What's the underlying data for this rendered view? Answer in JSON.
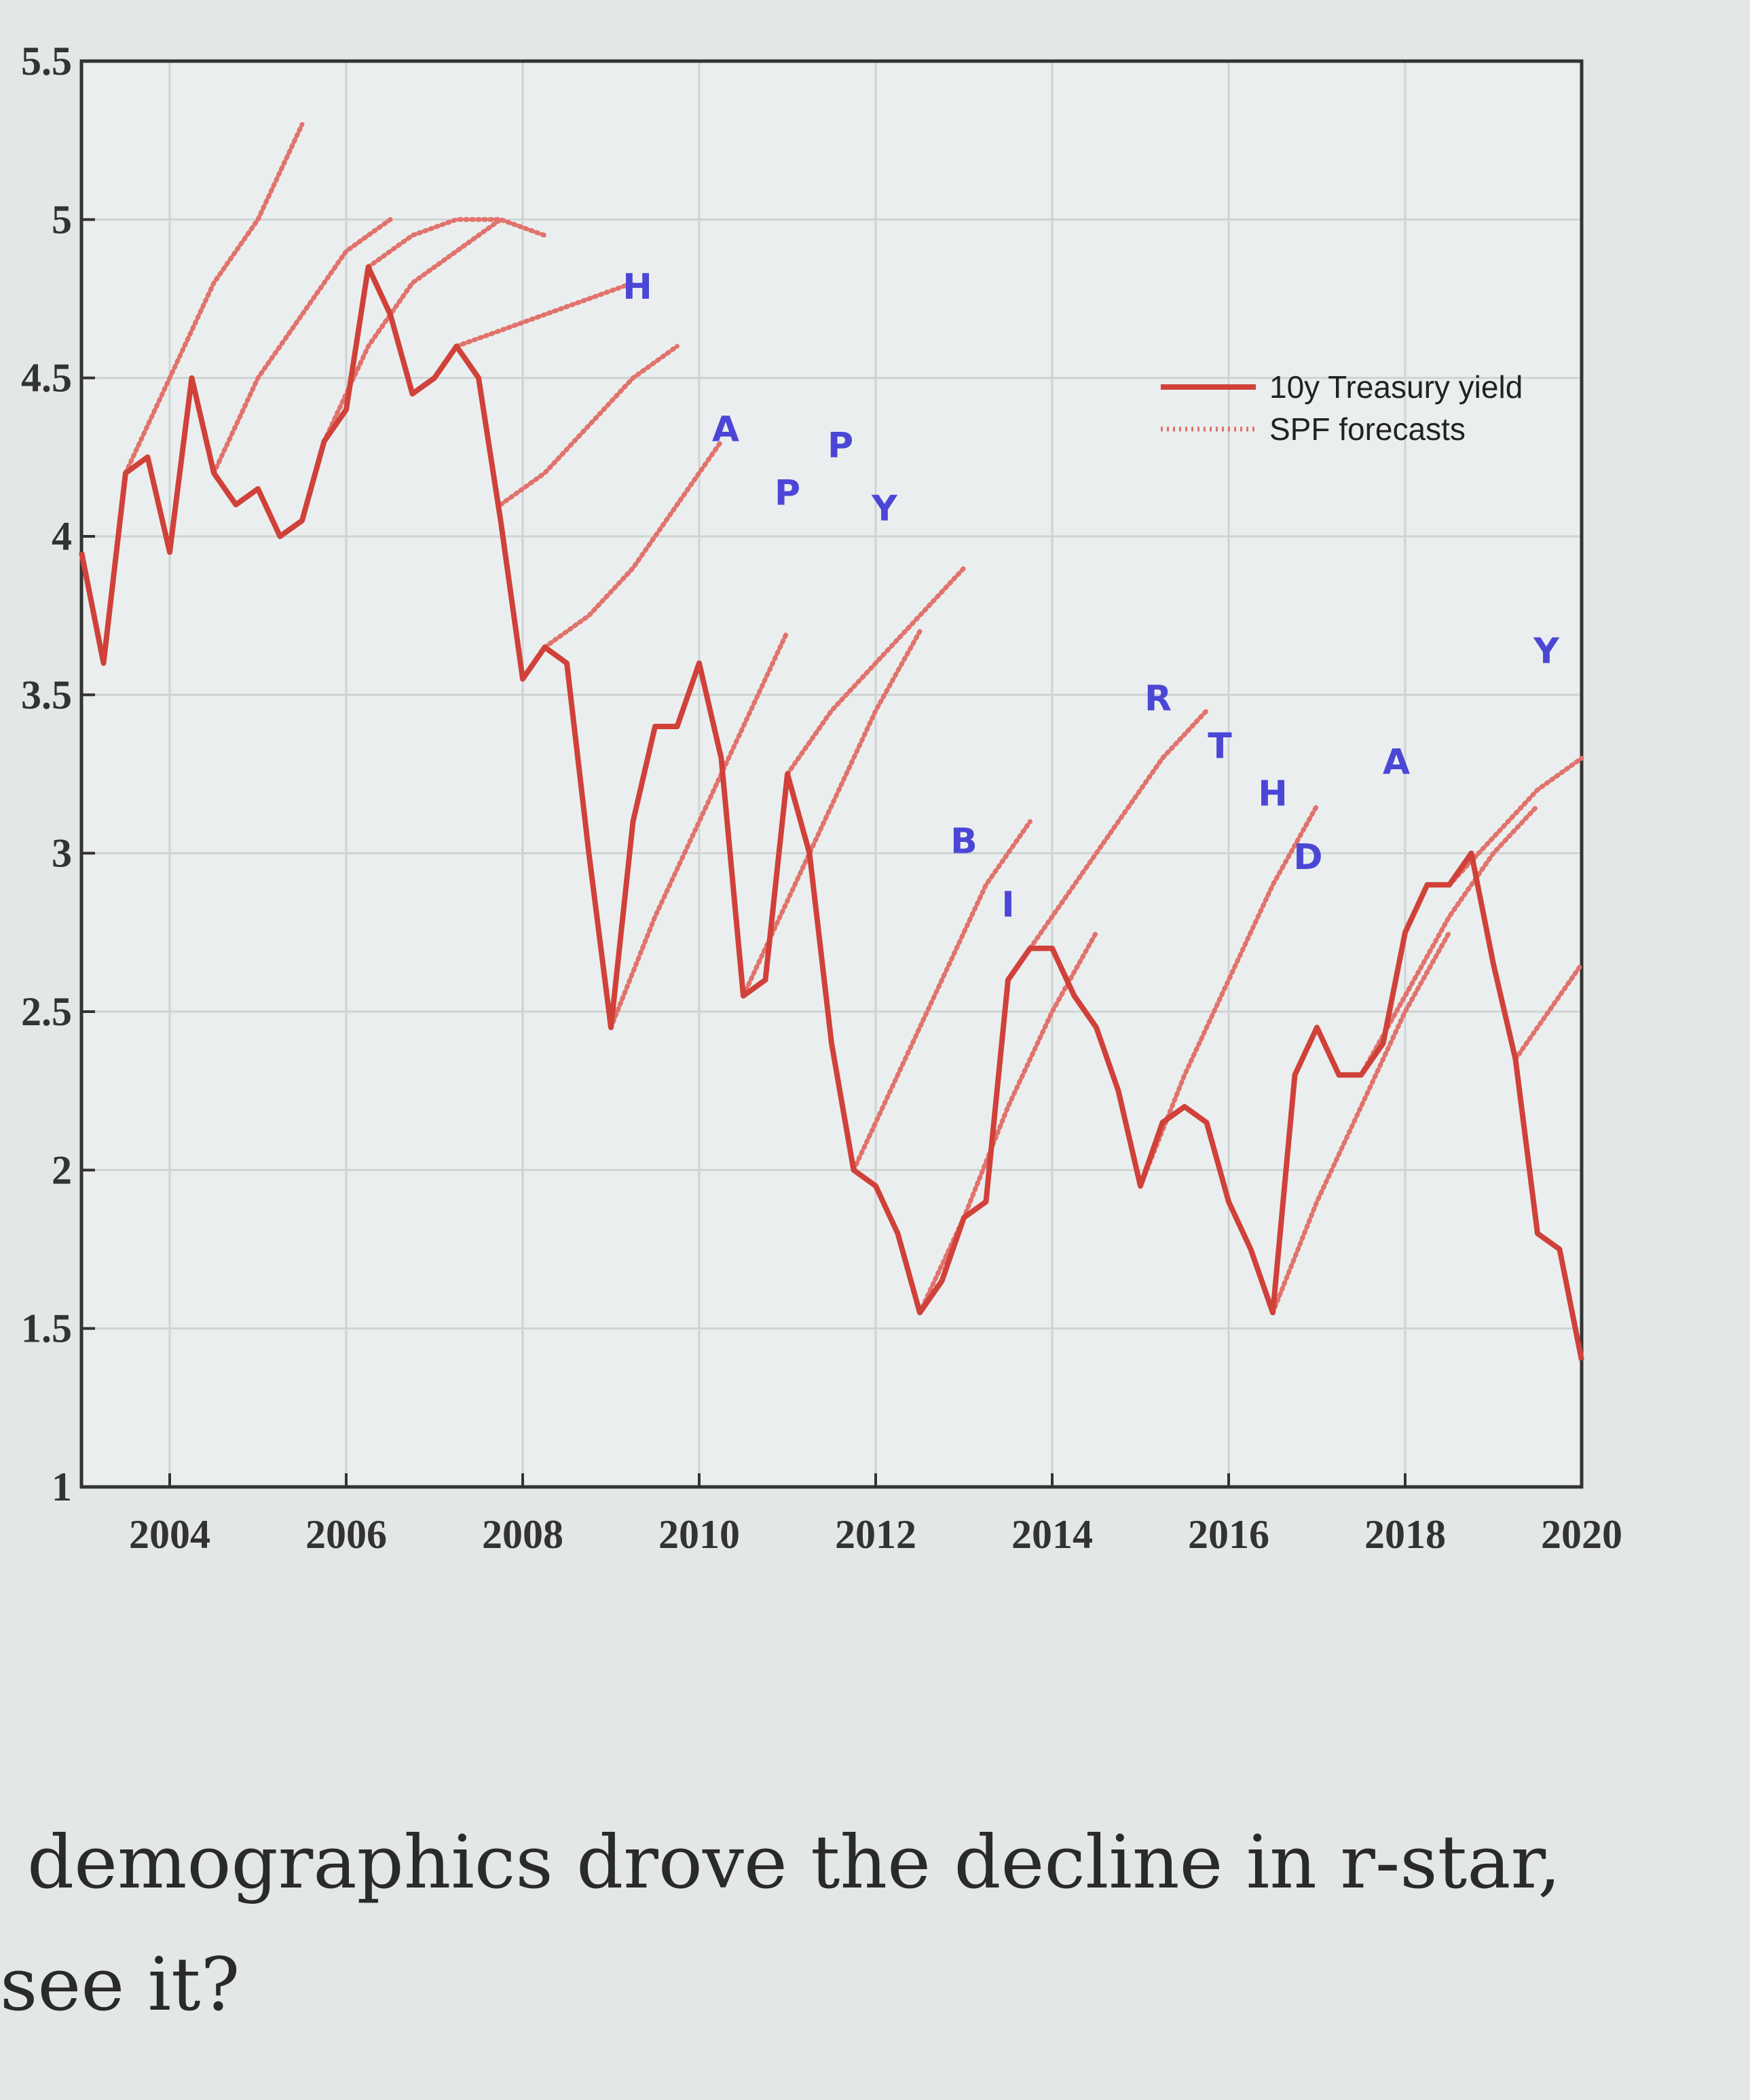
{
  "chart_data": {
    "type": "line",
    "xlim": [
      2003,
      2020
    ],
    "xticks": [
      2004,
      2006,
      2008,
      2010,
      2012,
      2014,
      2016,
      2018,
      2020
    ],
    "ylim": [
      1,
      5.5
    ],
    "yticks": [
      1,
      1.5,
      2,
      2.5,
      3,
      3.5,
      4,
      4.5,
      5,
      5.5
    ],
    "grid": true,
    "legend": "upper right",
    "series": [
      {
        "name": "10y Treasury yield",
        "color": "#d0413a",
        "style": "solid",
        "x": [
          2003,
          2003.25,
          2003.5,
          2003.75,
          2004,
          2004.25,
          2004.5,
          2004.75,
          2005,
          2005.25,
          2005.5,
          2005.75,
          2006,
          2006.25,
          2006.5,
          2006.75,
          2007,
          2007.25,
          2007.5,
          2007.75,
          2008,
          2008.25,
          2008.5,
          2008.75,
          2009,
          2009.25,
          2009.5,
          2009.75,
          2010,
          2010.25,
          2010.5,
          2010.75,
          2011,
          2011.25,
          2011.5,
          2011.75,
          2012,
          2012.25,
          2012.5,
          2012.75,
          2013,
          2013.25,
          2013.5,
          2013.75,
          2014,
          2014.25,
          2014.5,
          2014.75,
          2015,
          2015.25,
          2015.5,
          2015.75,
          2016,
          2016.25,
          2016.5,
          2016.75,
          2017,
          2017.25,
          2017.5,
          2017.75,
          2018,
          2018.25,
          2018.5,
          2018.75,
          2019,
          2019.25,
          2019.5,
          2019.75,
          2020
        ],
        "values": [
          3.95,
          3.6,
          4.2,
          4.25,
          3.95,
          4.5,
          4.2,
          4.1,
          4.15,
          4.0,
          4.05,
          4.3,
          4.4,
          4.85,
          4.7,
          4.45,
          4.5,
          4.6,
          4.5,
          4.05,
          3.55,
          3.65,
          3.6,
          3.0,
          2.45,
          3.1,
          3.4,
          3.4,
          3.6,
          3.3,
          2.55,
          2.6,
          3.25,
          3.0,
          2.4,
          2.0,
          1.95,
          1.8,
          1.55,
          1.65,
          1.85,
          1.9,
          2.6,
          2.7,
          2.7,
          2.55,
          2.45,
          2.25,
          1.95,
          2.15,
          2.2,
          2.15,
          1.9,
          1.75,
          1.55,
          2.3,
          2.45,
          2.3,
          2.3,
          2.4,
          2.75,
          2.9,
          2.9,
          3.0,
          2.65,
          2.35,
          1.8,
          1.75,
          1.4
        ]
      },
      {
        "name": "SPF forecasts",
        "color": "#e0736c",
        "style": "dotted",
        "forecasts": [
          {
            "x": [
              2003.5,
              2004,
              2004.5,
              2005,
              2005.5
            ],
            "values": [
              4.2,
              4.5,
              4.8,
              5.0,
              5.3
            ]
          },
          {
            "x": [
              2004.5,
              2005,
              2005.5,
              2006,
              2006.5
            ],
            "values": [
              4.2,
              4.5,
              4.7,
              4.9,
              5.0
            ]
          },
          {
            "x": [
              2005.75,
              2006.25,
              2006.75,
              2007.25,
              2007.75
            ],
            "values": [
              4.3,
              4.6,
              4.8,
              4.9,
              5.0
            ]
          },
          {
            "x": [
              2006.25,
              2006.75,
              2007.25,
              2007.75,
              2008.25
            ],
            "values": [
              4.85,
              4.95,
              5.0,
              5.0,
              4.95
            ]
          },
          {
            "x": [
              2007.25,
              2007.75,
              2008.25,
              2008.75,
              2009.25
            ],
            "values": [
              4.6,
              4.65,
              4.7,
              4.75,
              4.8
            ]
          },
          {
            "x": [
              2007.75,
              2008.25,
              2008.75,
              2009.25,
              2009.75
            ],
            "values": [
              4.1,
              4.2,
              4.35,
              4.5,
              4.6
            ]
          },
          {
            "x": [
              2008.25,
              2008.75,
              2009.25,
              2009.75,
              2010.25
            ],
            "values": [
              3.65,
              3.75,
              3.9,
              4.1,
              4.3
            ]
          },
          {
            "x": [
              2009,
              2009.5,
              2010,
              2010.5,
              2011
            ],
            "values": [
              2.45,
              2.8,
              3.1,
              3.4,
              3.7
            ]
          },
          {
            "x": [
              2010.5,
              2011,
              2011.5,
              2012,
              2012.5
            ],
            "values": [
              2.55,
              2.85,
              3.15,
              3.45,
              3.7
            ]
          },
          {
            "x": [
              2011,
              2011.5,
              2012,
              2012.5,
              2013
            ],
            "values": [
              3.25,
              3.45,
              3.6,
              3.75,
              3.9
            ]
          },
          {
            "x": [
              2011.75,
              2012.25,
              2012.75,
              2013.25,
              2013.75
            ],
            "values": [
              2.0,
              2.3,
              2.6,
              2.9,
              3.1
            ]
          },
          {
            "x": [
              2012.5,
              2013,
              2013.5,
              2014,
              2014.5
            ],
            "values": [
              1.55,
              1.85,
              2.2,
              2.5,
              2.75
            ]
          },
          {
            "x": [
              2013.75,
              2014.25,
              2014.75,
              2015.25,
              2015.75
            ],
            "values": [
              2.7,
              2.9,
              3.1,
              3.3,
              3.45
            ]
          },
          {
            "x": [
              2015,
              2015.5,
              2016,
              2016.5,
              2017
            ],
            "values": [
              1.95,
              2.3,
              2.6,
              2.9,
              3.15
            ]
          },
          {
            "x": [
              2016.5,
              2017,
              2017.5,
              2018,
              2018.5
            ],
            "values": [
              1.55,
              1.9,
              2.2,
              2.5,
              2.75
            ]
          },
          {
            "x": [
              2017.5,
              2018,
              2018.5,
              2019,
              2019.5
            ],
            "values": [
              2.3,
              2.55,
              2.8,
              3.0,
              3.15
            ]
          },
          {
            "x": [
              2018.5,
              2019,
              2019.5,
              2020
            ],
            "values": [
              2.9,
              3.05,
              3.2,
              3.3
            ]
          },
          {
            "x": [
              2019.25,
              2019.5,
              2019.75,
              2020
            ],
            "values": [
              2.35,
              2.45,
              2.55,
              2.65
            ]
          }
        ]
      }
    ],
    "annotations": [
      {
        "text": "H",
        "x": 2009.3,
        "y": 4.75
      },
      {
        "text": "A",
        "x": 2010.3,
        "y": 4.3
      },
      {
        "text": "P",
        "x": 2011.0,
        "y": 4.1
      },
      {
        "text": "P",
        "x": 2011.6,
        "y": 4.25
      },
      {
        "text": "Y",
        "x": 2012.1,
        "y": 4.05
      },
      {
        "text": "B",
        "x": 2013.0,
        "y": 3.0
      },
      {
        "text": "I",
        "x": 2013.5,
        "y": 2.8
      },
      {
        "text": "R",
        "x": 2015.2,
        "y": 3.45
      },
      {
        "text": "T",
        "x": 2015.9,
        "y": 3.3
      },
      {
        "text": "H",
        "x": 2016.5,
        "y": 3.15
      },
      {
        "text": "D",
        "x": 2016.9,
        "y": 2.95
      },
      {
        "text": "A",
        "x": 2017.9,
        "y": 3.25
      },
      {
        "text": "Y",
        "x": 2019.6,
        "y": 3.6
      }
    ]
  },
  "caption": {
    "lines": [
      "demographics drove the decline in r-star,",
      "see it?"
    ]
  }
}
